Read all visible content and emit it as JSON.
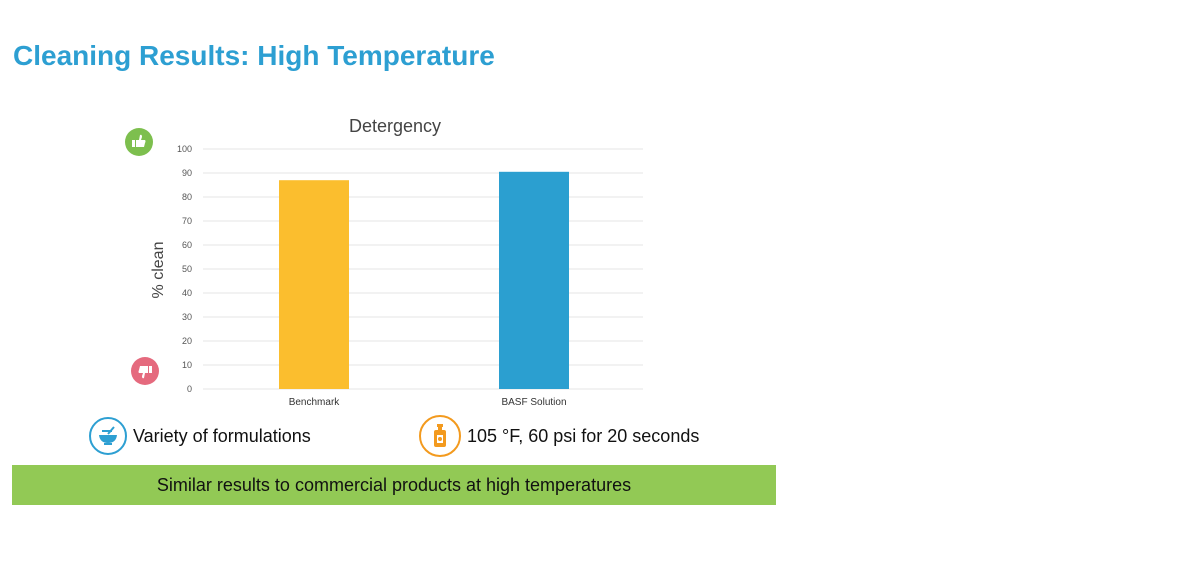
{
  "page": {
    "title": "Cleaning Results: High Temperature"
  },
  "colors": {
    "title": "#2d9fd2",
    "benchmark_bar": "#fbbe2e",
    "basf_bar": "#2b9fd0",
    "thumbs_up": "#7dbf4e",
    "thumbs_down": "#e56a7e",
    "formulations_icon": "#2d9fd2",
    "conditions_icon": "#f39a1e",
    "banner": "#92c955",
    "gridline": "#e6e6e6"
  },
  "icons": {
    "top": "thumbs-up-icon",
    "bottom": "thumbs-down-icon",
    "formulations": "mixing-bowl-icon",
    "conditions": "spray-bottle-icon"
  },
  "chart_data": {
    "type": "bar",
    "title": "Detergency",
    "xlabel": "",
    "ylabel": "% clean",
    "categories": [
      "Benchmark",
      "BASF Solution"
    ],
    "values": [
      87,
      90.5
    ],
    "ylim": [
      0,
      100
    ],
    "yticks": [
      0,
      10,
      20,
      30,
      40,
      50,
      60,
      70,
      80,
      90,
      100
    ],
    "grid": true,
    "legend": "none"
  },
  "features": [
    {
      "label": "Variety of formulations"
    },
    {
      "label": "105 °F, 60 psi for 20 seconds"
    }
  ],
  "banner": {
    "text": "Similar results to commercial products at high temperatures"
  }
}
